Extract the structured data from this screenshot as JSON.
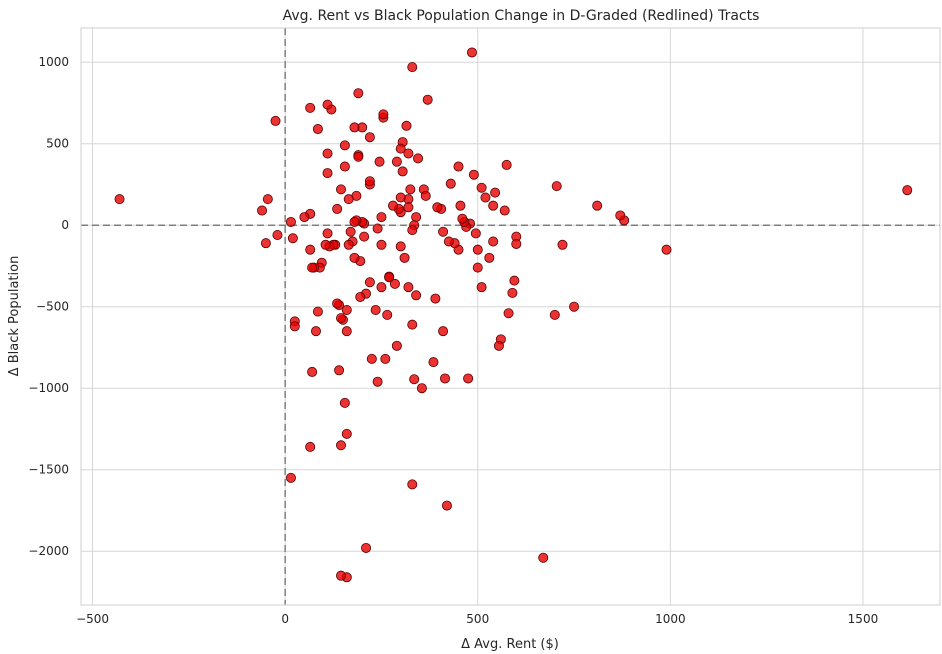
{
  "chart_data": {
    "type": "scatter",
    "title": "Avg. Rent vs Black Population Change in D-Graded (Redlined) Tracts",
    "xlabel": "Δ Avg. Rent ($)",
    "ylabel": "Δ Black Population",
    "xlim": [
      -530,
      1700
    ],
    "ylim": [
      -2330,
      1210
    ],
    "xticks": [
      -500,
      0,
      500,
      1000,
      1500
    ],
    "yticks": [
      -2000,
      -1500,
      -1000,
      -500,
      0,
      500,
      1000
    ],
    "tick_labels_x": [
      "−500",
      "0",
      "500",
      "1000",
      "1500"
    ],
    "tick_labels_y": [
      "−2000",
      "−1500",
      "−1000",
      "−500",
      "0",
      "500",
      "1000"
    ],
    "grid": true,
    "reference_lines": {
      "x": 0,
      "y": 0
    },
    "point_color": "#e60000",
    "points": [
      [
        -430,
        160
      ],
      [
        1615,
        215
      ],
      [
        990,
        -150
      ],
      [
        880,
        30
      ],
      [
        870,
        60
      ],
      [
        810,
        120
      ],
      [
        750,
        -500
      ],
      [
        720,
        -120
      ],
      [
        705,
        240
      ],
      [
        700,
        -550
      ],
      [
        670,
        -2040
      ],
      [
        600,
        -70
      ],
      [
        600,
        -115
      ],
      [
        595,
        -340
      ],
      [
        590,
        -415
      ],
      [
        580,
        -540
      ],
      [
        575,
        370
      ],
      [
        570,
        90
      ],
      [
        560,
        -700
      ],
      [
        555,
        -740
      ],
      [
        540,
        120
      ],
      [
        545,
        200
      ],
      [
        540,
        -100
      ],
      [
        530,
        -200
      ],
      [
        520,
        170
      ],
      [
        510,
        230
      ],
      [
        510,
        -380
      ],
      [
        500,
        -150
      ],
      [
        500,
        -260
      ],
      [
        495,
        -50
      ],
      [
        490,
        310
      ],
      [
        485,
        1060
      ],
      [
        480,
        10
      ],
      [
        475,
        -940
      ],
      [
        470,
        -10
      ],
      [
        465,
        20
      ],
      [
        460,
        40
      ],
      [
        455,
        120
      ],
      [
        450,
        360
      ],
      [
        450,
        -150
      ],
      [
        440,
        -110
      ],
      [
        430,
        255
      ],
      [
        425,
        -100
      ],
      [
        420,
        -1720
      ],
      [
        415,
        -940
      ],
      [
        410,
        -650
      ],
      [
        410,
        -40
      ],
      [
        405,
        100
      ],
      [
        395,
        110
      ],
      [
        390,
        -450
      ],
      [
        385,
        -840
      ],
      [
        370,
        770
      ],
      [
        360,
        220
      ],
      [
        365,
        180
      ],
      [
        355,
        -1000
      ],
      [
        345,
        410
      ],
      [
        340,
        50
      ],
      [
        340,
        -430
      ],
      [
        335,
        0
      ],
      [
        330,
        970
      ],
      [
        330,
        -610
      ],
      [
        330,
        -1590
      ],
      [
        335,
        -945
      ],
      [
        330,
        -30
      ],
      [
        325,
        220
      ],
      [
        320,
        -380
      ],
      [
        320,
        160
      ],
      [
        320,
        110
      ],
      [
        320,
        440
      ],
      [
        315,
        610
      ],
      [
        310,
        -200
      ],
      [
        305,
        330
      ],
      [
        305,
        510
      ],
      [
        300,
        470
      ],
      [
        300,
        170
      ],
      [
        300,
        -130
      ],
      [
        300,
        80
      ],
      [
        290,
        -740
      ],
      [
        295,
        100
      ],
      [
        290,
        390
      ],
      [
        285,
        -360
      ],
      [
        280,
        120
      ],
      [
        270,
        -315
      ],
      [
        270,
        -320
      ],
      [
        265,
        -550
      ],
      [
        260,
        -820
      ],
      [
        255,
        660
      ],
      [
        255,
        680
      ],
      [
        250,
        50
      ],
      [
        250,
        -120
      ],
      [
        250,
        -380
      ],
      [
        245,
        390
      ],
      [
        240,
        -20
      ],
      [
        240,
        -960
      ],
      [
        235,
        -520
      ],
      [
        225,
        -820
      ],
      [
        220,
        540
      ],
      [
        220,
        250
      ],
      [
        220,
        270
      ],
      [
        220,
        -350
      ],
      [
        210,
        -1980
      ],
      [
        210,
        -420
      ],
      [
        205,
        -70
      ],
      [
        205,
        10
      ],
      [
        200,
        20
      ],
      [
        200,
        600
      ],
      [
        195,
        -440
      ],
      [
        195,
        -220
      ],
      [
        190,
        810
      ],
      [
        190,
        430
      ],
      [
        190,
        420
      ],
      [
        185,
        180
      ],
      [
        185,
        30
      ],
      [
        180,
        -200
      ],
      [
        180,
        20
      ],
      [
        180,
        600
      ],
      [
        175,
        -100
      ],
      [
        170,
        -40
      ],
      [
        165,
        -120
      ],
      [
        165,
        160
      ],
      [
        160,
        -2160
      ],
      [
        160,
        -1280
      ],
      [
        160,
        -650
      ],
      [
        160,
        -520
      ],
      [
        155,
        360
      ],
      [
        155,
        490
      ],
      [
        155,
        -1090
      ],
      [
        150,
        -580
      ],
      [
        145,
        -570
      ],
      [
        145,
        -2150
      ],
      [
        145,
        -1350
      ],
      [
        145,
        220
      ],
      [
        140,
        -490
      ],
      [
        140,
        -890
      ],
      [
        135,
        100
      ],
      [
        135,
        -480
      ],
      [
        130,
        -120
      ],
      [
        125,
        -120
      ],
      [
        120,
        710
      ],
      [
        115,
        -130
      ],
      [
        110,
        740
      ],
      [
        110,
        440
      ],
      [
        110,
        320
      ],
      [
        110,
        -50
      ],
      [
        105,
        -120
      ],
      [
        95,
        -230
      ],
      [
        90,
        -260
      ],
      [
        85,
        590
      ],
      [
        85,
        -530
      ],
      [
        80,
        -650
      ],
      [
        75,
        -260
      ],
      [
        70,
        -900
      ],
      [
        70,
        -260
      ],
      [
        65,
        720
      ],
      [
        65,
        -1360
      ],
      [
        65,
        -150
      ],
      [
        65,
        70
      ],
      [
        50,
        50
      ],
      [
        25,
        -590
      ],
      [
        25,
        -620
      ],
      [
        20,
        -80
      ],
      [
        15,
        20
      ],
      [
        15,
        -1550
      ],
      [
        -20,
        -60
      ],
      [
        -25,
        640
      ],
      [
        -45,
        160
      ],
      [
        -50,
        -110
      ],
      [
        -60,
        90
      ]
    ]
  }
}
